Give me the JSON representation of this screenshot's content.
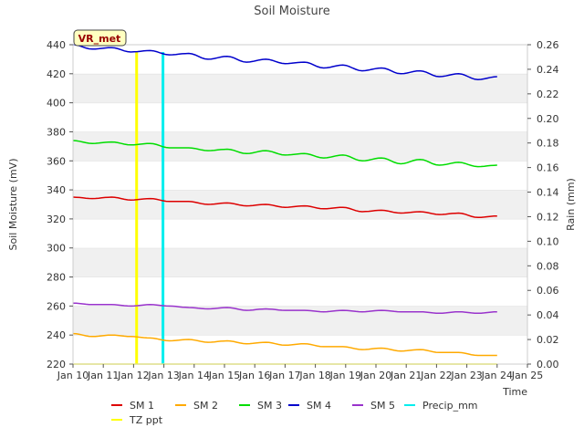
{
  "chart_data": {
    "type": "line",
    "title": "Soil Moisture",
    "xlabel": "Time",
    "ylabel": "Soil Moisture (mV)",
    "y2label": "Rain (mm)",
    "badge": "VR_met",
    "xlim": [
      10,
      25
    ],
    "ylim": [
      220,
      440
    ],
    "y2lim": [
      0.0,
      0.26
    ],
    "x_ticks": [
      10,
      11,
      12,
      13,
      14,
      15,
      16,
      17,
      18,
      19,
      20,
      21,
      22,
      23,
      24,
      25
    ],
    "x_tick_labels": [
      "Jan 10",
      "Jan 11",
      "Jan 12",
      "Jan 13",
      "Jan 14",
      "Jan 15",
      "Jan 16",
      "Jan 17",
      "Jan 18",
      "Jan 19",
      "Jan 20",
      "Jan 21",
      "Jan 22",
      "Jan 23",
      "Jan 24",
      "Jan 25"
    ],
    "y_ticks": [
      220,
      240,
      260,
      280,
      300,
      320,
      340,
      360,
      380,
      400,
      420,
      440
    ],
    "y_tick_labels": [
      "220",
      "240",
      "260",
      "280",
      "300",
      "320",
      "340",
      "360",
      "380",
      "400",
      "420",
      "440"
    ],
    "y2_ticks": [
      0.0,
      0.02,
      0.04,
      0.06,
      0.08,
      0.1,
      0.12,
      0.14,
      0.16,
      0.18,
      0.2,
      0.22,
      0.24,
      0.26
    ],
    "y2_tick_labels": [
      "0.00",
      "0.02",
      "0.04",
      "0.06",
      "0.08",
      "0.10",
      "0.12",
      "0.14",
      "0.16",
      "0.18",
      "0.20",
      "0.22",
      "0.24",
      "0.26"
    ],
    "x_start": 10.0,
    "x_end": 24.0,
    "series": [
      {
        "name": "SM 1",
        "color": "#dd0000",
        "axis": "left",
        "values": [
          335,
          334,
          335,
          333,
          334,
          332,
          332,
          330,
          331,
          329,
          330,
          328,
          329,
          327,
          328,
          325,
          326,
          324,
          325,
          323,
          324,
          321,
          322
        ]
      },
      {
        "name": "SM 2",
        "color": "#ffaa00",
        "axis": "left",
        "values": [
          241,
          239,
          240,
          239,
          238,
          236,
          237,
          235,
          236,
          234,
          235,
          233,
          234,
          232,
          232,
          230,
          231,
          229,
          230,
          228,
          228,
          226,
          226
        ]
      },
      {
        "name": "SM 3",
        "color": "#00dd00",
        "axis": "left",
        "values": [
          374,
          372,
          373,
          371,
          372,
          369,
          369,
          367,
          368,
          365,
          367,
          364,
          365,
          362,
          364,
          360,
          362,
          358,
          361,
          357,
          359,
          356,
          357
        ]
      },
      {
        "name": "SM 4",
        "color": "#0000cc",
        "axis": "left",
        "values": [
          440,
          437,
          438,
          435,
          436,
          433,
          434,
          430,
          432,
          428,
          430,
          427,
          428,
          424,
          426,
          422,
          424,
          420,
          422,
          418,
          420,
          416,
          418
        ]
      },
      {
        "name": "SM 5",
        "color": "#9933cc",
        "axis": "left",
        "values": [
          262,
          261,
          261,
          260,
          261,
          260,
          259,
          258,
          259,
          257,
          258,
          257,
          257,
          256,
          257,
          256,
          257,
          256,
          256,
          255,
          256,
          255,
          256
        ]
      },
      {
        "name": "Precip_mm",
        "color": "#00eeee",
        "axis": "right",
        "type": "bar",
        "bars": [
          {
            "x": 12.97,
            "value": 0.254
          }
        ]
      },
      {
        "name": "TZ ppt",
        "color": "#ffff00",
        "axis": "right",
        "type": "bar",
        "bars": [
          {
            "x": 12.1,
            "value": 0.254
          }
        ],
        "baseline": 0.0
      }
    ],
    "legend": {
      "position": "bottom",
      "entries": [
        "SM 1",
        "SM 2",
        "SM 3",
        "SM 4",
        "SM 5",
        "Precip_mm",
        "TZ ppt"
      ]
    }
  }
}
